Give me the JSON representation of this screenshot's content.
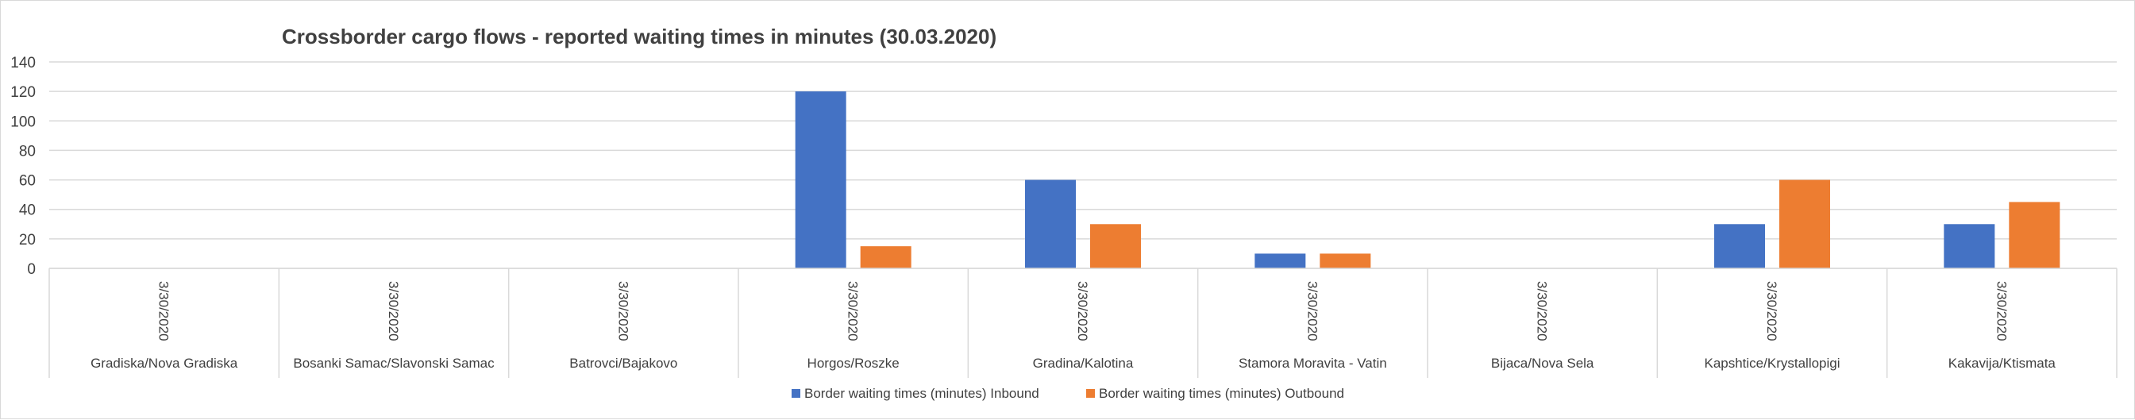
{
  "chart_data": {
    "type": "bar",
    "title": "Crossborder cargo flows - reported waiting times in minutes (30.03.2020)",
    "date_label": "3/30/2020",
    "categories": [
      "Gradiska/Nova Gradiska",
      "Bosanki Samac/Slavonski Samac",
      "Batrovci/Bajakovo",
      "Horgos/Roszke",
      "Gradina/Kalotina",
      "Stamora Moravita - Vatin",
      "Bijaca/Nova Sela",
      "Kapshtice/Krystallopigi",
      "Kakavija/Ktismata"
    ],
    "series": [
      {
        "name": "Border waiting times (minutes) Inbound",
        "color": "#4472c4",
        "values": [
          0,
          0,
          0,
          120,
          60,
          10,
          0,
          30,
          30
        ]
      },
      {
        "name": "Border waiting times (minutes) Outbound",
        "color": "#ed7d31",
        "values": [
          0,
          0,
          0,
          15,
          30,
          10,
          0,
          60,
          45
        ]
      }
    ],
    "ylim": [
      0,
      140
    ],
    "yticks": [
      0,
      20,
      40,
      60,
      80,
      100,
      120,
      140
    ],
    "grid": true,
    "legend_position": "bottom",
    "gridline_color": "#d9d9d9",
    "text_color": "#404040"
  }
}
